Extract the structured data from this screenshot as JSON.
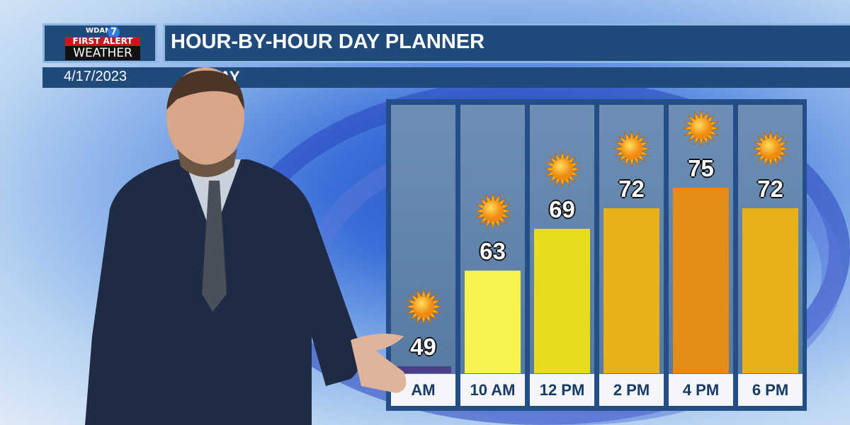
{
  "logo": {
    "station": "WDAM",
    "channel": "7",
    "line1": "FIRST ALERT",
    "line2": "WEATHER"
  },
  "header": {
    "title": "HOUR-BY-HOUR DAY PLANNER",
    "date": "4/17/2023",
    "subtitle_visible": "AY"
  },
  "colors": {
    "panel": "#234f86",
    "header": "#1f4a7a",
    "label_text": "#183a66"
  },
  "chart_data": {
    "type": "bar",
    "categories": [
      "AM",
      "10 AM",
      "12 PM",
      "2 PM",
      "4 PM",
      "6 PM"
    ],
    "values": [
      49,
      63,
      69,
      72,
      75,
      72
    ],
    "value_labels": [
      "49",
      "63",
      "69",
      "72",
      "75",
      "72"
    ],
    "icons": [
      "sun-icon",
      "sun-icon",
      "sun-icon",
      "sun-icon",
      "sun-icon",
      "sun-icon"
    ],
    "bar_colors": [
      "#4b3f8c",
      "#f6f24e",
      "#e9dc1e",
      "#e8b11b",
      "#e48d16",
      "#e8b11b"
    ],
    "ylim": [
      48,
      78
    ],
    "grid": false,
    "title": "",
    "xlabel": "",
    "ylabel": ""
  }
}
